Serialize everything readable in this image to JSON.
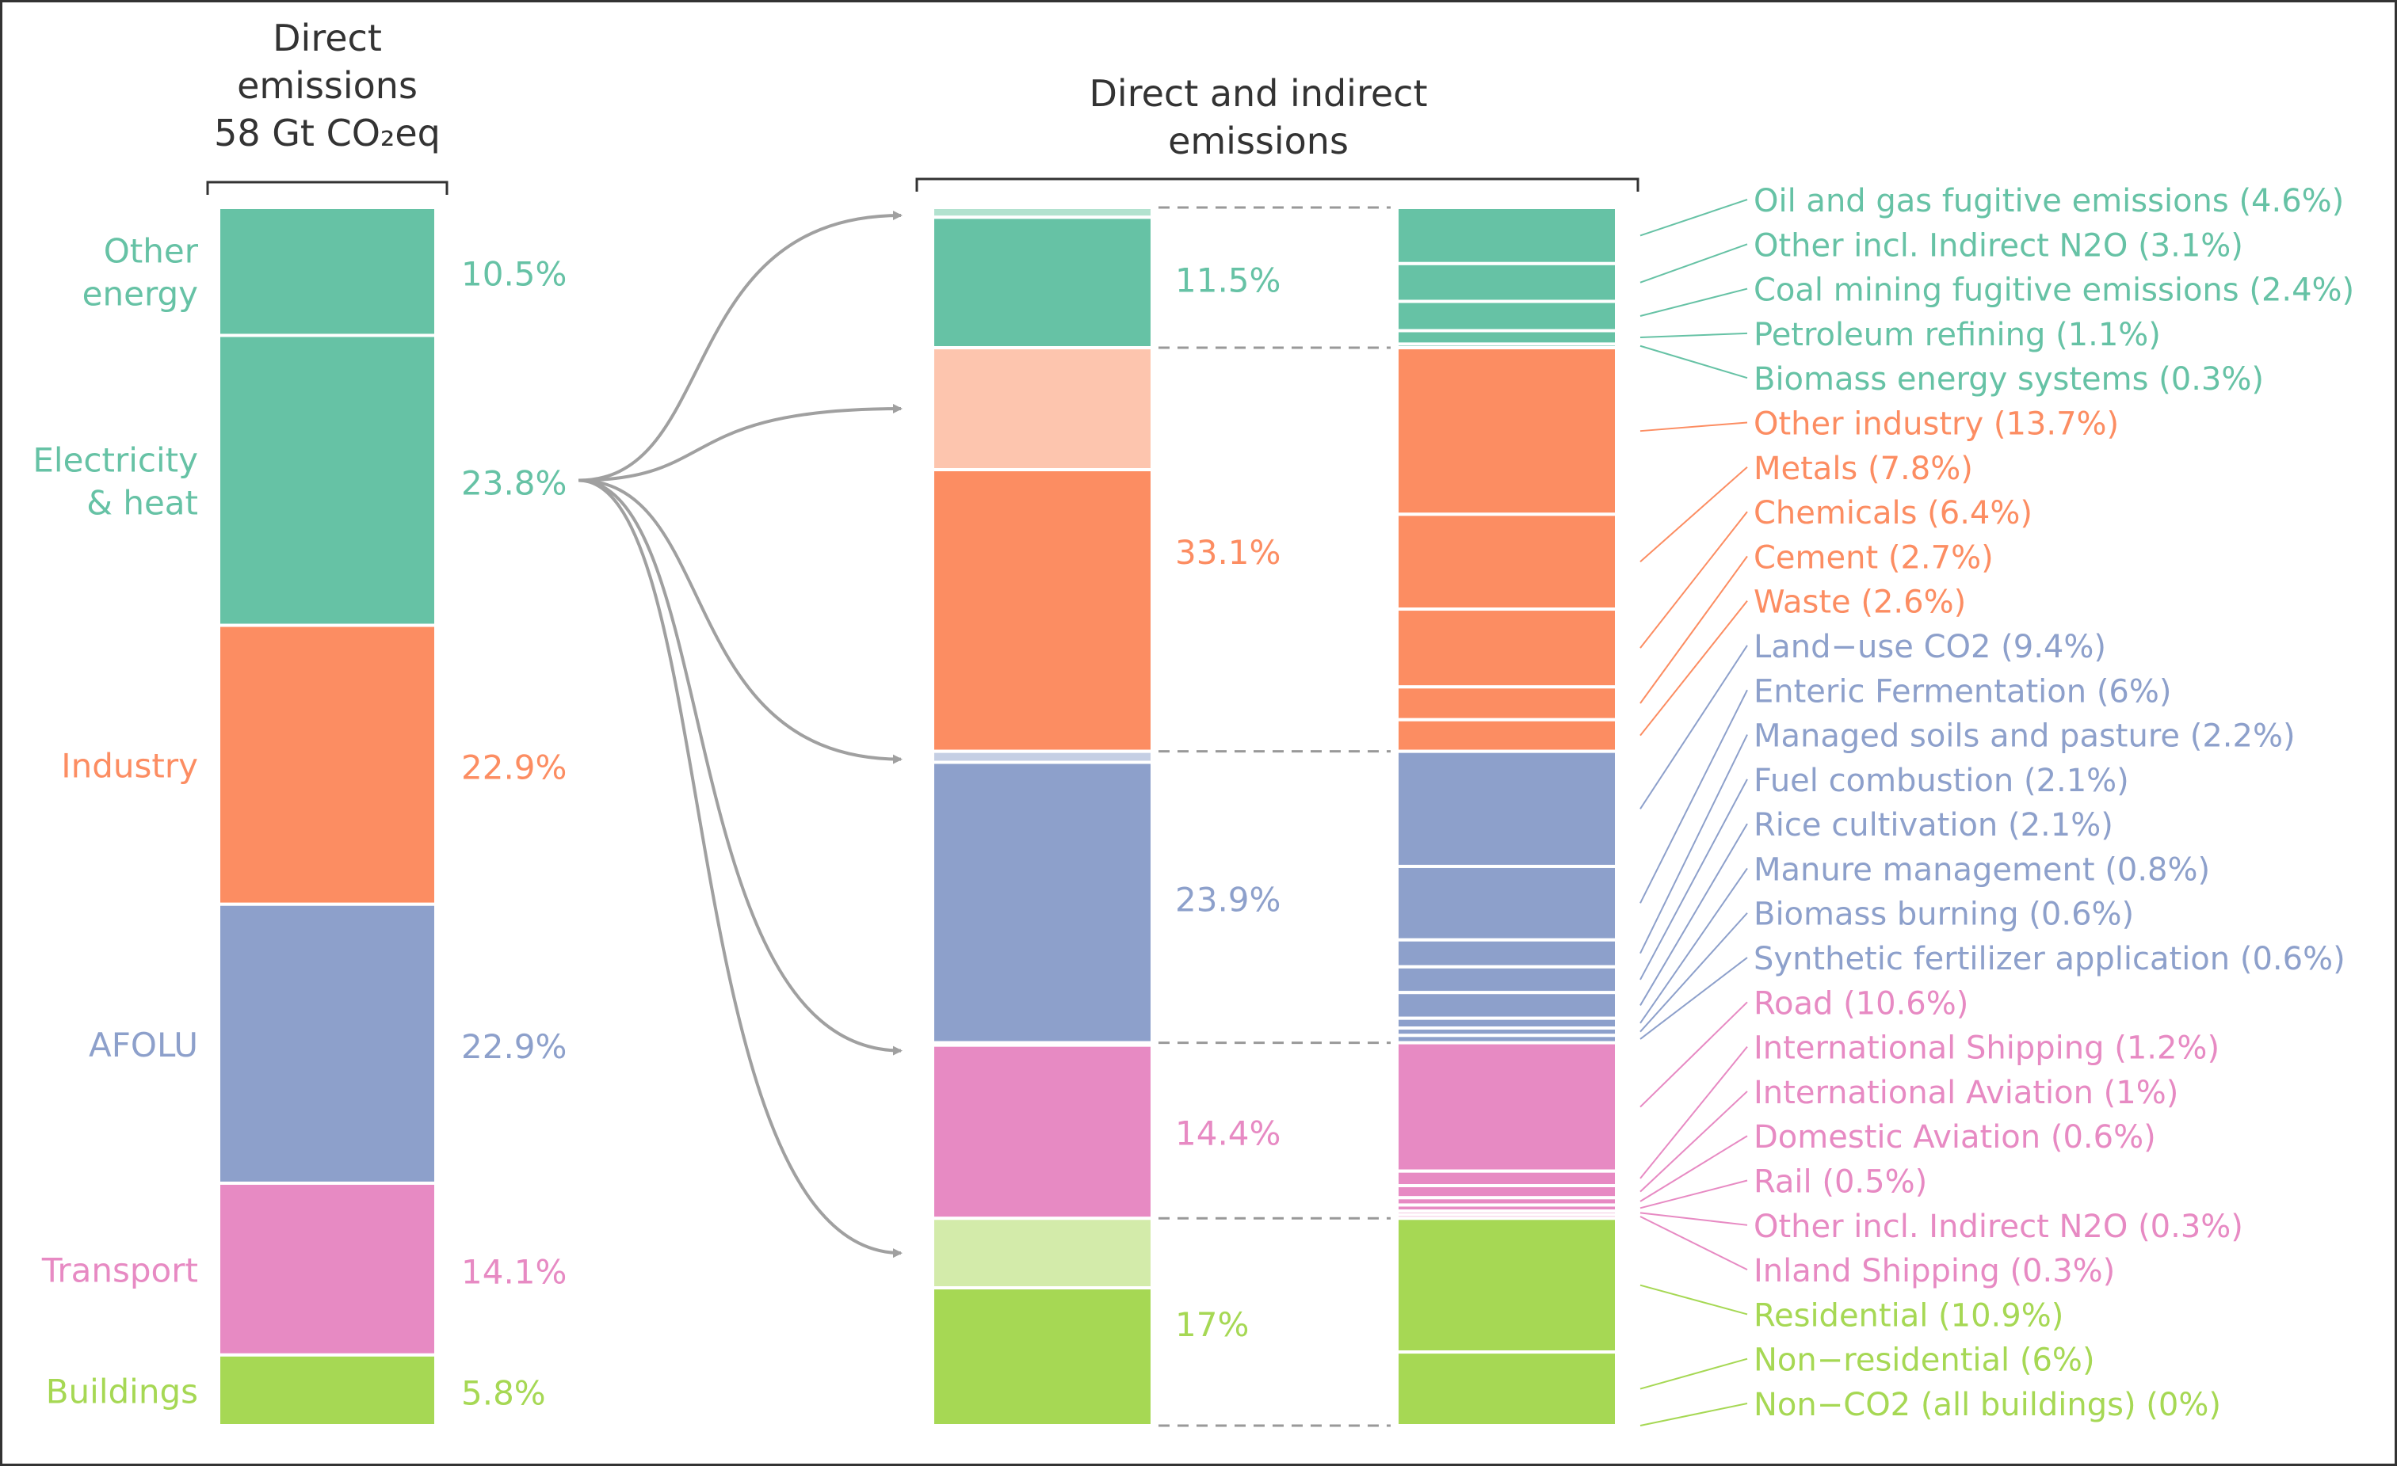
{
  "chart_data": {
    "type": "bar",
    "colors": {
      "energy": "#66c2a5",
      "industry": "#fc8d62",
      "afolu": "#8da0cb",
      "transport": "#e78ac3",
      "buildings": "#a6d854",
      "energy_light": "#b2e2cf",
      "industry_light": "#fdc5ae",
      "afolu_light": "#c5cfe4",
      "buildings_light": "#d3ebaa",
      "heading": "#333333",
      "arrow": "#a0a0a0",
      "dash": "#999999"
    },
    "direct": {
      "title_lines": [
        "Direct",
        "emissions",
        "58 Gt CO₂eq"
      ],
      "sectors": [
        {
          "label_lines": [
            "Other",
            "energy"
          ],
          "pct": "10.5%",
          "value": 10.5,
          "color_key": "energy"
        },
        {
          "label_lines": [
            "Electricity",
            "& heat"
          ],
          "pct": "23.8%",
          "value": 23.8,
          "color_key": "energy"
        },
        {
          "label_lines": [
            "Industry"
          ],
          "pct": "22.9%",
          "value": 22.9,
          "color_key": "industry"
        },
        {
          "label_lines": [
            "AFOLU"
          ],
          "pct": "22.9%",
          "value": 22.9,
          "color_key": "afolu"
        },
        {
          "label_lines": [
            "Transport"
          ],
          "pct": "14.1%",
          "value": 14.1,
          "color_key": "transport"
        },
        {
          "label_lines": [
            "Buildings"
          ],
          "pct": "5.8%",
          "value": 5.8,
          "color_key": "buildings"
        }
      ]
    },
    "indirect": {
      "title_lines": [
        "Direct and indirect",
        "emissions"
      ],
      "groups": [
        {
          "pct": "11.5%",
          "total": 11.5,
          "indirect": 0.8,
          "color_key": "energy",
          "light_key": "energy_light",
          "subsectors": [
            {
              "label": "Oil and gas fugitive emissions (4.6%)",
              "value": 4.6
            },
            {
              "label": "Other incl. Indirect N2O (3.1%)",
              "value": 3.1
            },
            {
              "label": "Coal mining fugitive emissions (2.4%)",
              "value": 2.4
            },
            {
              "label": "Petroleum refining (1.1%)",
              "value": 1.1
            },
            {
              "label": "Biomass energy systems (0.3%)",
              "value": 0.3
            }
          ]
        },
        {
          "pct": "33.1%",
          "total": 33.1,
          "indirect": 10.0,
          "color_key": "industry",
          "light_key": "industry_light",
          "subsectors": [
            {
              "label": "Other industry (13.7%)",
              "value": 13.7
            },
            {
              "label": "Metals (7.8%)",
              "value": 7.8
            },
            {
              "label": "Chemicals (6.4%)",
              "value": 6.4
            },
            {
              "label": "Cement (2.7%)",
              "value": 2.7
            },
            {
              "label": "Waste (2.6%)",
              "value": 2.6
            }
          ]
        },
        {
          "pct": "23.9%",
          "total": 23.9,
          "indirect": 0.9,
          "color_key": "afolu",
          "light_key": "afolu_light",
          "subsectors": [
            {
              "label": "Land−use CO2 (9.4%)",
              "value": 9.4
            },
            {
              "label": "Enteric Fermentation (6%)",
              "value": 6.0
            },
            {
              "label": "Managed soils and pasture (2.2%)",
              "value": 2.2
            },
            {
              "label": "Fuel combustion (2.1%)",
              "value": 2.1
            },
            {
              "label": "Rice cultivation (2.1%)",
              "value": 2.1
            },
            {
              "label": "Manure management (0.8%)",
              "value": 0.8
            },
            {
              "label": "Biomass burning (0.6%)",
              "value": 0.6
            },
            {
              "label": "Synthetic fertilizer application (0.6%)",
              "value": 0.6
            }
          ]
        },
        {
          "pct": "14.4%",
          "total": 14.4,
          "indirect": 0.2,
          "color_key": "transport",
          "light_key": "transport",
          "subsectors": [
            {
              "label": "Road  (10.6%)",
              "value": 10.6
            },
            {
              "label": "International Shipping (1.2%)",
              "value": 1.2
            },
            {
              "label": "International Aviation (1%)",
              "value": 1.0
            },
            {
              "label": "Domestic Aviation (0.6%)",
              "value": 0.6
            },
            {
              "label": "Rail  (0.5%)",
              "value": 0.5
            },
            {
              "label": "Other incl. Indirect N2O (0.3%)",
              "value": 0.3
            },
            {
              "label": "Inland Shipping (0.3%)",
              "value": 0.3
            }
          ]
        },
        {
          "pct": "17%",
          "total": 17.0,
          "indirect": 5.7,
          "color_key": "buildings",
          "light_key": "buildings_light",
          "subsectors": [
            {
              "label": "Residential (10.9%)",
              "value": 10.9
            },
            {
              "label": "Non−residential (6%)",
              "value": 6.0
            },
            {
              "label": "Non−CO2 (all buildings) (0%)",
              "value": 0.0
            }
          ]
        }
      ]
    }
  }
}
